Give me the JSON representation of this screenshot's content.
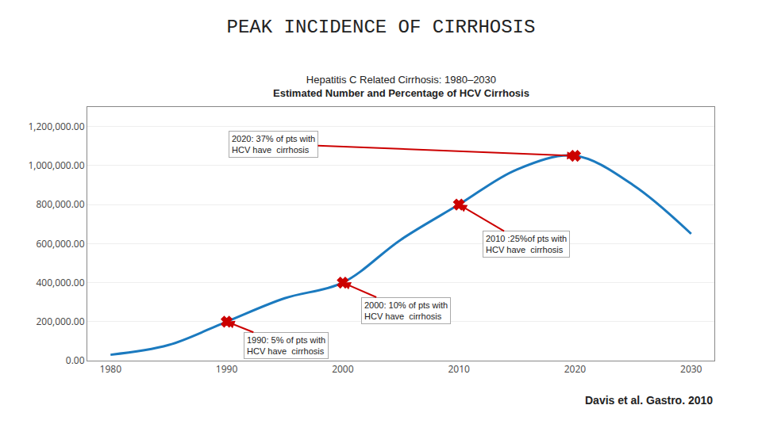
{
  "chart_data": {
    "type": "line",
    "title": "PEAK INCIDENCE OF CIRRHOSIS",
    "subtitle": [
      "Hepatitis C Related Cirrhosis: 1980–2030",
      "Estimated Number and Percentage of HCV Cirrhosis"
    ],
    "x": [
      1980,
      1985,
      1990,
      1995,
      2000,
      2005,
      2010,
      2015,
      2020,
      2025,
      2030
    ],
    "series": [
      {
        "values": [
          30000,
          80000,
          200000,
          320000,
          400000,
          620000,
          800000,
          980000,
          1050000,
          900000,
          650000
        ],
        "color": "#1b7abf",
        "line_style": "solid"
      },
      {
        "type": "scatter",
        "x": [
          1990,
          2000,
          2010,
          2020
        ],
        "values": [
          200000,
          400000,
          800000,
          1050000
        ],
        "color": "#cc0000",
        "marker": "x"
      }
    ],
    "annotations": [
      {
        "text": "1990: 5% of pts with\nHCV have  cirrhosis",
        "x": 1990,
        "y": 200000
      },
      {
        "text": "2000: 10% of pts with\nHCV have  cirrhosis",
        "x": 2000,
        "y": 400000
      },
      {
        "text": "2010 :25%of pts with\nHCV have  cirrhosis",
        "x": 2010,
        "y": 800000
      },
      {
        "text": "2020: 37% of pts with\nHCV have  cirrhosis",
        "x": 2020,
        "y": 1050000
      },
      {
        "text": "Davis et al. Gastro. 2010"
      }
    ],
    "xlim": [
      1978,
      2032
    ],
    "xticks": [
      1980,
      1990,
      2000,
      2010,
      2020,
      2030
    ],
    "ylim": [
      0,
      1300000
    ],
    "yticks": [
      {
        "value": 0,
        "label": "0.00"
      },
      {
        "value": 200000,
        "label": "200,000.00"
      },
      {
        "value": 400000,
        "label": "400,000.00"
      },
      {
        "value": 600000,
        "label": "600,000.00"
      },
      {
        "value": 800000,
        "label": "800,000.00"
      },
      {
        "value": 1000000,
        "label": "1,000,000.00"
      },
      {
        "value": 1200000,
        "label": "1,200,000.00"
      }
    ],
    "grid": true
  }
}
